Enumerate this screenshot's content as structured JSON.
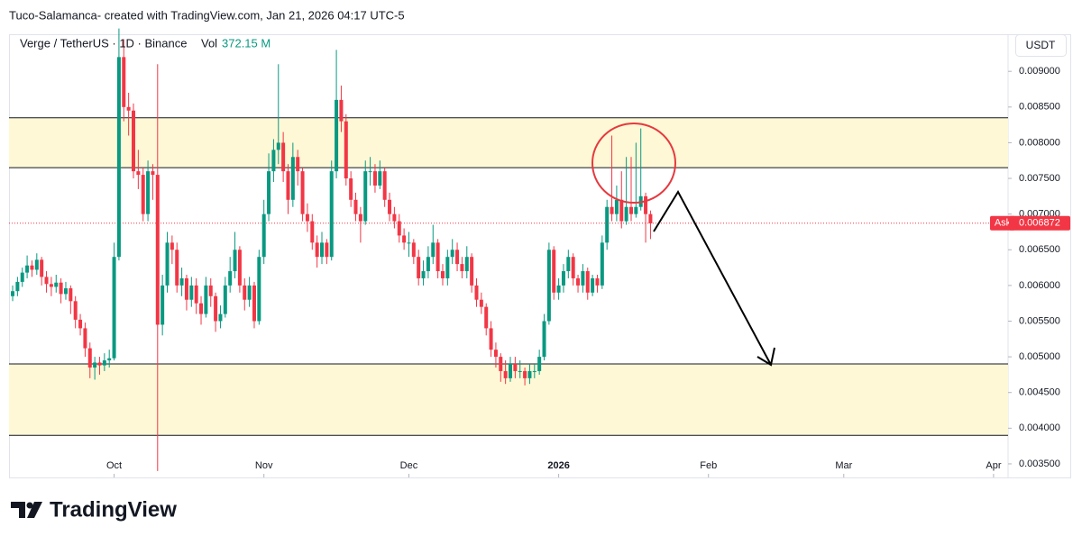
{
  "header": {
    "text": "Tuco-Salamanca- created with TradingView.com, Jan 21, 2026 04:17 UTC-5"
  },
  "logo": {
    "text": "TradingView"
  },
  "chart_data": {
    "type": "candlestick",
    "title": "Verge / TetherUS · 1D · Binance",
    "volume_label": "Vol",
    "volume_value": "372.15 M",
    "currency": "USDT",
    "ask_label": "Ask",
    "ask": 0.006872,
    "up_color": "#089981",
    "down_color": "#f23645",
    "zone_color": "#fff8d6",
    "xlim": [
      -0.75,
      206
    ],
    "xticks": [
      {
        "value": 21,
        "label": "Oct"
      },
      {
        "value": 52,
        "label": "Nov"
      },
      {
        "value": 82,
        "label": "Dec"
      },
      {
        "value": 113,
        "label": "2026"
      },
      {
        "value": 144,
        "label": "Feb"
      },
      {
        "value": 172,
        "label": "Mar"
      },
      {
        "value": 203,
        "label": "Apr"
      }
    ],
    "ylim": [
      0.00331,
      0.00952
    ],
    "yticks": [
      {
        "value": 0.0035,
        "label": "0.003500"
      },
      {
        "value": 0.004,
        "label": "0.004000"
      },
      {
        "value": 0.0045,
        "label": "0.004500"
      },
      {
        "value": 0.005,
        "label": "0.005000"
      },
      {
        "value": 0.0055,
        "label": "0.005500"
      },
      {
        "value": 0.006,
        "label": "0.006000"
      },
      {
        "value": 0.0065,
        "label": "0.006500"
      },
      {
        "value": 0.007,
        "label": "0.007000"
      },
      {
        "value": 0.0075,
        "label": "0.007500"
      },
      {
        "value": 0.008,
        "label": "0.008000"
      },
      {
        "value": 0.0085,
        "label": "0.008500"
      },
      {
        "value": 0.009,
        "label": "0.009000"
      }
    ],
    "zones": [
      [
        0.00765,
        0.00835
      ],
      [
        0.0039,
        0.0049
      ]
    ],
    "candles": [
      [
        0.00585,
        0.006,
        0.00578,
        0.00592
      ],
      [
        0.00592,
        0.00612,
        0.00585,
        0.00605
      ],
      [
        0.00605,
        0.00625,
        0.00598,
        0.00618
      ],
      [
        0.00618,
        0.00642,
        0.0061,
        0.00628
      ],
      [
        0.00628,
        0.00635,
        0.00612,
        0.00622
      ],
      [
        0.00622,
        0.00645,
        0.00615,
        0.00636
      ],
      [
        0.00636,
        0.0064,
        0.006,
        0.00612
      ],
      [
        0.00612,
        0.0062,
        0.0059,
        0.00602
      ],
      [
        0.00602,
        0.00612,
        0.00585,
        0.00598
      ],
      [
        0.00598,
        0.00615,
        0.0059,
        0.00604
      ],
      [
        0.00604,
        0.0061,
        0.00575,
        0.00588
      ],
      [
        0.00588,
        0.00605,
        0.0058,
        0.00596
      ],
      [
        0.00596,
        0.006,
        0.0056,
        0.00578
      ],
      [
        0.00578,
        0.00585,
        0.0054,
        0.00552
      ],
      [
        0.00552,
        0.0056,
        0.0053,
        0.0054
      ],
      [
        0.0054,
        0.00548,
        0.005,
        0.00512
      ],
      [
        0.00512,
        0.0052,
        0.0047,
        0.00485
      ],
      [
        0.00485,
        0.005,
        0.00468,
        0.00492
      ],
      [
        0.00492,
        0.005,
        0.00475,
        0.00488
      ],
      [
        0.00488,
        0.00505,
        0.0048,
        0.00495
      ],
      [
        0.00495,
        0.0051,
        0.00485,
        0.00498
      ],
      [
        0.00498,
        0.0066,
        0.00495,
        0.0064
      ],
      [
        0.0064,
        0.0096,
        0.00635,
        0.0092
      ],
      [
        0.0092,
        0.00945,
        0.0083,
        0.0085
      ],
      [
        0.0085,
        0.0087,
        0.0081,
        0.00845
      ],
      [
        0.00845,
        0.00855,
        0.0075,
        0.0076
      ],
      [
        0.0076,
        0.0079,
        0.00735,
        0.00755
      ],
      [
        0.00755,
        0.00765,
        0.0069,
        0.007
      ],
      [
        0.007,
        0.00775,
        0.0069,
        0.0076
      ],
      [
        0.0076,
        0.0077,
        0.0072,
        0.00755
      ],
      [
        0.00755,
        0.0091,
        0.0034,
        0.00545
      ],
      [
        0.00545,
        0.00615,
        0.0053,
        0.006
      ],
      [
        0.006,
        0.00675,
        0.0059,
        0.0066
      ],
      [
        0.0066,
        0.0067,
        0.0063,
        0.0065
      ],
      [
        0.0065,
        0.0066,
        0.0059,
        0.006
      ],
      [
        0.006,
        0.00625,
        0.00585,
        0.0061
      ],
      [
        0.0061,
        0.00615,
        0.00565,
        0.0058
      ],
      [
        0.0058,
        0.00612,
        0.0057,
        0.006
      ],
      [
        0.006,
        0.0061,
        0.0056,
        0.00575
      ],
      [
        0.00575,
        0.00585,
        0.00545,
        0.0056
      ],
      [
        0.0056,
        0.00612,
        0.00555,
        0.006
      ],
      [
        0.006,
        0.0061,
        0.0057,
        0.00585
      ],
      [
        0.00585,
        0.0059,
        0.00535,
        0.0055
      ],
      [
        0.0055,
        0.00572,
        0.0054,
        0.0056
      ],
      [
        0.0056,
        0.00612,
        0.00555,
        0.006
      ],
      [
        0.006,
        0.0064,
        0.0059,
        0.0062
      ],
      [
        0.0062,
        0.00675,
        0.0061,
        0.0065
      ],
      [
        0.0065,
        0.00655,
        0.0059,
        0.006
      ],
      [
        0.006,
        0.0061,
        0.00565,
        0.0058
      ],
      [
        0.0058,
        0.00612,
        0.0057,
        0.006
      ],
      [
        0.006,
        0.00605,
        0.0054,
        0.0055
      ],
      [
        0.0055,
        0.0065,
        0.00545,
        0.0064
      ],
      [
        0.0064,
        0.0072,
        0.0063,
        0.007
      ],
      [
        0.007,
        0.00785,
        0.0069,
        0.0076
      ],
      [
        0.0076,
        0.00805,
        0.00745,
        0.0079
      ],
      [
        0.0079,
        0.0091,
        0.0077,
        0.008
      ],
      [
        0.008,
        0.00815,
        0.00745,
        0.0076
      ],
      [
        0.0076,
        0.0077,
        0.007,
        0.0072
      ],
      [
        0.0072,
        0.008,
        0.0071,
        0.0078
      ],
      [
        0.0078,
        0.0079,
        0.0074,
        0.0076
      ],
      [
        0.0076,
        0.00765,
        0.0069,
        0.007
      ],
      [
        0.007,
        0.00715,
        0.00675,
        0.0069
      ],
      [
        0.0069,
        0.007,
        0.0065,
        0.0066
      ],
      [
        0.0066,
        0.0067,
        0.00625,
        0.0064
      ],
      [
        0.0064,
        0.00675,
        0.0063,
        0.0066
      ],
      [
        0.0066,
        0.00665,
        0.0063,
        0.0064
      ],
      [
        0.0064,
        0.00775,
        0.00635,
        0.0076
      ],
      [
        0.0076,
        0.0093,
        0.0075,
        0.0086
      ],
      [
        0.0086,
        0.0088,
        0.00815,
        0.0083
      ],
      [
        0.0083,
        0.0084,
        0.0074,
        0.0075
      ],
      [
        0.0075,
        0.0076,
        0.0071,
        0.0072
      ],
      [
        0.0072,
        0.0073,
        0.0069,
        0.007
      ],
      [
        0.007,
        0.0071,
        0.0066,
        0.0069
      ],
      [
        0.0069,
        0.00775,
        0.00685,
        0.0076
      ],
      [
        0.0076,
        0.0078,
        0.0074,
        0.0076
      ],
      [
        0.0076,
        0.0077,
        0.0073,
        0.0074
      ],
      [
        0.0074,
        0.00775,
        0.00735,
        0.0076
      ],
      [
        0.0076,
        0.00765,
        0.0071,
        0.0072
      ],
      [
        0.0072,
        0.0073,
        0.0069,
        0.007
      ],
      [
        0.007,
        0.0071,
        0.0068,
        0.0069
      ],
      [
        0.0069,
        0.007,
        0.0066,
        0.0067
      ],
      [
        0.0067,
        0.0068,
        0.0065,
        0.0066
      ],
      [
        0.0066,
        0.00675,
        0.0064,
        0.0066
      ],
      [
        0.0066,
        0.00665,
        0.0063,
        0.0064
      ],
      [
        0.0064,
        0.0065,
        0.006,
        0.0061
      ],
      [
        0.0061,
        0.00635,
        0.006,
        0.0062
      ],
      [
        0.0062,
        0.00655,
        0.0061,
        0.0064
      ],
      [
        0.0064,
        0.00685,
        0.0063,
        0.0066
      ],
      [
        0.0066,
        0.00665,
        0.0061,
        0.0062
      ],
      [
        0.0062,
        0.0063,
        0.006,
        0.0061
      ],
      [
        0.0061,
        0.0065,
        0.006,
        0.0064
      ],
      [
        0.0064,
        0.00665,
        0.0063,
        0.0065
      ],
      [
        0.0065,
        0.0066,
        0.0062,
        0.0063
      ],
      [
        0.0063,
        0.0064,
        0.0061,
        0.0062
      ],
      [
        0.0062,
        0.00655,
        0.0061,
        0.0064
      ],
      [
        0.0064,
        0.00645,
        0.0059,
        0.006
      ],
      [
        0.006,
        0.0061,
        0.0057,
        0.0058
      ],
      [
        0.0058,
        0.0059,
        0.0056,
        0.0057
      ],
      [
        0.0057,
        0.00575,
        0.0053,
        0.0054
      ],
      [
        0.0054,
        0.0055,
        0.005,
        0.0051
      ],
      [
        0.0051,
        0.0052,
        0.00485,
        0.005
      ],
      [
        0.005,
        0.00505,
        0.00465,
        0.0048
      ],
      [
        0.0048,
        0.00495,
        0.00462,
        0.0047
      ],
      [
        0.0047,
        0.005,
        0.00465,
        0.0049
      ],
      [
        0.0049,
        0.005,
        0.0047,
        0.0048
      ],
      [
        0.0048,
        0.00495,
        0.0047,
        0.0048
      ],
      [
        0.0048,
        0.00485,
        0.0046,
        0.0047
      ],
      [
        0.0047,
        0.0049,
        0.00462,
        0.0048
      ],
      [
        0.0048,
        0.0049,
        0.0047,
        0.0048
      ],
      [
        0.0048,
        0.0051,
        0.00475,
        0.005
      ],
      [
        0.005,
        0.0056,
        0.00495,
        0.0055
      ],
      [
        0.0055,
        0.0066,
        0.00545,
        0.0065
      ],
      [
        0.0065,
        0.00655,
        0.0058,
        0.0059
      ],
      [
        0.0059,
        0.0061,
        0.0058,
        0.006
      ],
      [
        0.006,
        0.0063,
        0.0059,
        0.0062
      ],
      [
        0.0062,
        0.0065,
        0.0061,
        0.0064
      ],
      [
        0.0064,
        0.00645,
        0.006,
        0.0061
      ],
      [
        0.0061,
        0.00615,
        0.0059,
        0.006
      ],
      [
        0.006,
        0.0063,
        0.0059,
        0.0062
      ],
      [
        0.0062,
        0.00625,
        0.0058,
        0.0059
      ],
      [
        0.0059,
        0.00615,
        0.00585,
        0.0061
      ],
      [
        0.0061,
        0.00615,
        0.0059,
        0.006
      ],
      [
        0.006,
        0.0067,
        0.00595,
        0.0066
      ],
      [
        0.0066,
        0.0072,
        0.0065,
        0.0071
      ],
      [
        0.0071,
        0.0081,
        0.0069,
        0.007
      ],
      [
        0.007,
        0.0074,
        0.0069,
        0.0072
      ],
      [
        0.0072,
        0.0076,
        0.0068,
        0.0069
      ],
      [
        0.0069,
        0.0078,
        0.00685,
        0.0071
      ],
      [
        0.0071,
        0.0078,
        0.0069,
        0.007
      ],
      [
        0.007,
        0.008,
        0.00695,
        0.0071
      ],
      [
        0.0071,
        0.0082,
        0.00705,
        0.00725
      ],
      [
        0.00725,
        0.0073,
        0.0066,
        0.007
      ],
      [
        0.007,
        0.00705,
        0.00665,
        0.00687
      ]
    ]
  }
}
